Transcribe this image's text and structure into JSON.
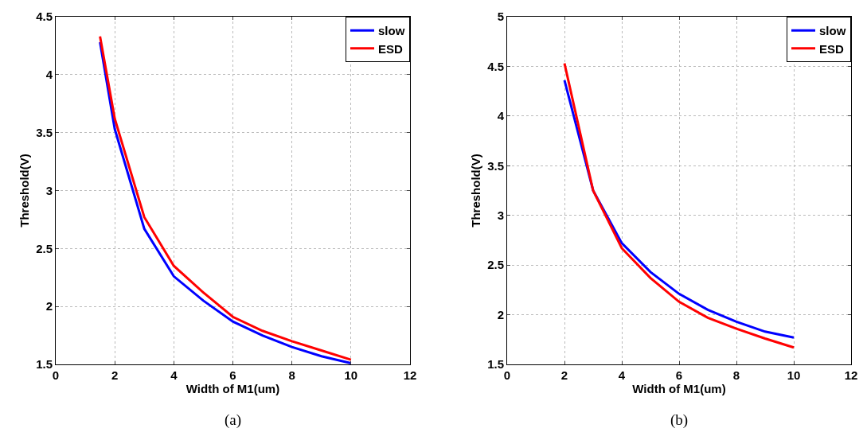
{
  "chart_data": [
    {
      "type": "line",
      "xlabel": "Width of M1(um)",
      "ylabel": "Threshold(V)",
      "x": [
        1.5,
        2,
        3,
        4,
        5,
        6,
        7,
        8,
        9,
        10
      ],
      "series": [
        {
          "name": "slow",
          "color": "#0000ff",
          "values": [
            4.28,
            3.53,
            2.67,
            2.26,
            2.05,
            1.87,
            1.75,
            1.65,
            1.57,
            1.51
          ]
        },
        {
          "name": "ESD",
          "color": "#ff0000",
          "values": [
            4.33,
            3.62,
            2.77,
            2.35,
            2.12,
            1.91,
            1.79,
            1.7,
            1.62,
            1.54
          ]
        }
      ],
      "xlim": [
        0,
        12
      ],
      "xticks": [
        0,
        2,
        4,
        6,
        8,
        10,
        12
      ],
      "ylim": [
        1.5,
        4.5
      ],
      "yticks": [
        1.5,
        2,
        2.5,
        3,
        3.5,
        4,
        4.5
      ],
      "grid": true,
      "legend": "top right",
      "line_style": "solid",
      "marker": "none",
      "annotations": [
        "(a)"
      ]
    },
    {
      "type": "line",
      "xlabel": "Width of M1(um)",
      "ylabel": "Threshold(V)",
      "x": [
        2,
        3,
        4,
        5,
        6,
        7,
        8,
        9,
        10
      ],
      "series": [
        {
          "name": "slow",
          "color": "#0000ff",
          "values": [
            4.36,
            3.25,
            2.72,
            2.43,
            2.21,
            2.05,
            1.93,
            1.83,
            1.77
          ]
        },
        {
          "name": "ESD",
          "color": "#ff0000",
          "values": [
            4.53,
            3.25,
            2.67,
            2.37,
            2.13,
            1.97,
            1.86,
            1.76,
            1.67
          ]
        }
      ],
      "xlim": [
        0,
        12
      ],
      "xticks": [
        0,
        2,
        4,
        6,
        8,
        10,
        12
      ],
      "ylim": [
        1.5,
        5
      ],
      "yticks": [
        1.5,
        2,
        2.5,
        3,
        3.5,
        4,
        4.5,
        5
      ],
      "grid": true,
      "legend": "top right",
      "line_style": "solid",
      "marker": "none",
      "annotations": [
        "(b)"
      ]
    }
  ]
}
